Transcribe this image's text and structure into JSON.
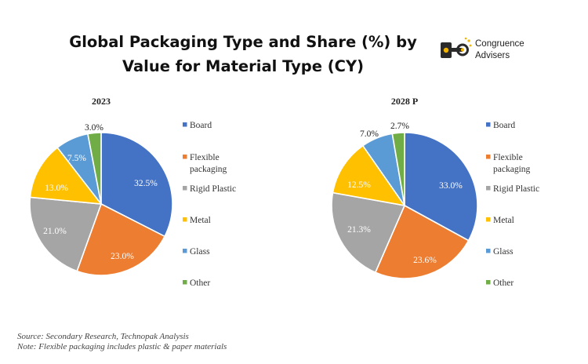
{
  "title_line1": "Global Packaging Type and Share (%) by",
  "title_line2": "Value for Material Type (CY)",
  "logo": {
    "name": "Congruence",
    "sub": "Advisers",
    "icon": "key-icon"
  },
  "footer": {
    "source": "Source: Secondary Research, Technopak Analysis",
    "note": "Note: Flexible packaging includes plastic & paper materials"
  },
  "chart_data": [
    {
      "type": "pie",
      "title": "2023",
      "categories": [
        "Board",
        "Flexible packaging",
        "Rigid Plastic",
        "Metal",
        "Glass",
        "Other"
      ],
      "values": [
        32.5,
        23.0,
        21.0,
        13.0,
        7.5,
        3.0
      ],
      "labels": [
        "32.5%",
        "23.0%",
        "21.0%",
        "13.0%",
        "7.5%",
        "3.0%"
      ]
    },
    {
      "type": "pie",
      "title": "2028 P",
      "categories": [
        "Board",
        "Flexible packaging",
        "Rigid Plastic",
        "Metal",
        "Glass",
        "Other"
      ],
      "values": [
        33.0,
        23.6,
        21.3,
        12.5,
        7.0,
        2.7
      ],
      "labels": [
        "33.0%",
        "23.6%",
        "21.3%",
        "12.5%",
        "7.0%",
        "2.7%"
      ]
    }
  ],
  "legend": {
    "items": [
      {
        "label_lines": [
          "Board"
        ],
        "color": "#4472C4"
      },
      {
        "label_lines": [
          "Flexible",
          "packaging"
        ],
        "color": "#ED7D31"
      },
      {
        "label_lines": [
          "Rigid Plastic"
        ],
        "color": "#A5A5A5"
      },
      {
        "label_lines": [
          "Metal"
        ],
        "color": "#FFC000"
      },
      {
        "label_lines": [
          "Glass"
        ],
        "color": "#5B9BD5"
      },
      {
        "label_lines": [
          "Other"
        ],
        "color": "#70AD47"
      }
    ]
  }
}
